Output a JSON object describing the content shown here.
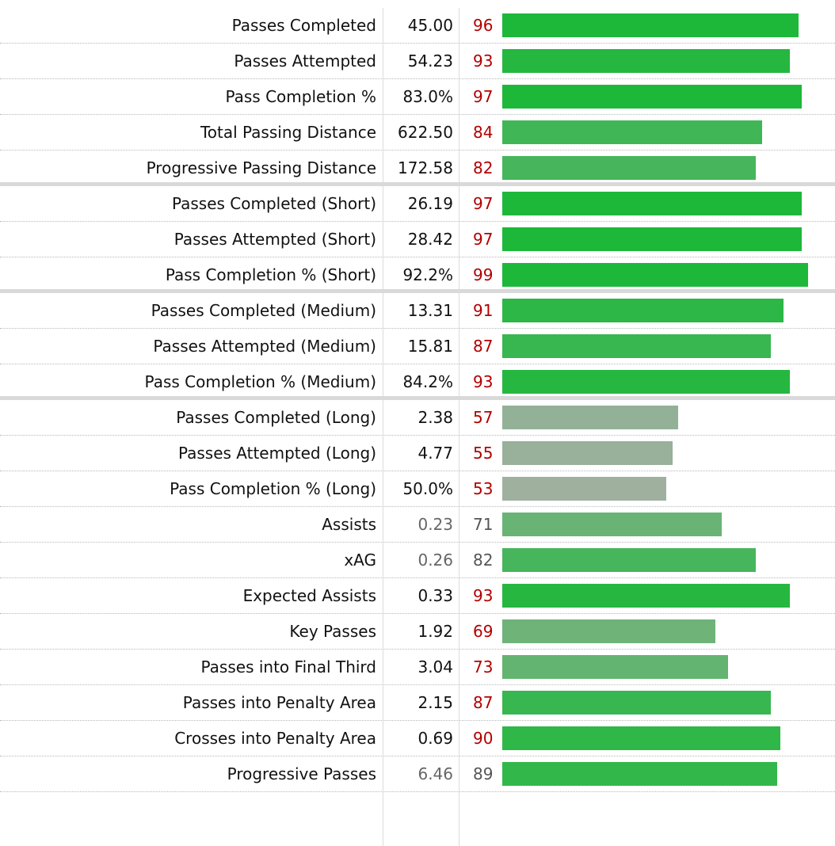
{
  "rows": [
    {
      "label": "Passes Completed",
      "value": "45.00",
      "percentile": "96",
      "percentile_value": 96,
      "highlight": true,
      "group_end": false
    },
    {
      "label": "Passes Attempted",
      "value": "54.23",
      "percentile": "93",
      "percentile_value": 93,
      "highlight": true,
      "group_end": false
    },
    {
      "label": "Pass Completion %",
      "value": "83.0%",
      "percentile": "97",
      "percentile_value": 97,
      "highlight": true,
      "group_end": false
    },
    {
      "label": "Total Passing Distance",
      "value": "622.50",
      "percentile": "84",
      "percentile_value": 84,
      "highlight": true,
      "group_end": false
    },
    {
      "label": "Progressive Passing Distance",
      "value": "172.58",
      "percentile": "82",
      "percentile_value": 82,
      "highlight": true,
      "group_end": true
    },
    {
      "label": "Passes Completed (Short)",
      "value": "26.19",
      "percentile": "97",
      "percentile_value": 97,
      "highlight": true,
      "group_end": false
    },
    {
      "label": "Passes Attempted (Short)",
      "value": "28.42",
      "percentile": "97",
      "percentile_value": 97,
      "highlight": true,
      "group_end": false
    },
    {
      "label": "Pass Completion % (Short)",
      "value": "92.2%",
      "percentile": "99",
      "percentile_value": 99,
      "highlight": true,
      "group_end": true
    },
    {
      "label": "Passes Completed (Medium)",
      "value": "13.31",
      "percentile": "91",
      "percentile_value": 91,
      "highlight": true,
      "group_end": false
    },
    {
      "label": "Passes Attempted (Medium)",
      "value": "15.81",
      "percentile": "87",
      "percentile_value": 87,
      "highlight": true,
      "group_end": false
    },
    {
      "label": "Pass Completion % (Medium)",
      "value": "84.2%",
      "percentile": "93",
      "percentile_value": 93,
      "highlight": true,
      "group_end": true
    },
    {
      "label": "Passes Completed (Long)",
      "value": "2.38",
      "percentile": "57",
      "percentile_value": 57,
      "highlight": true,
      "group_end": false
    },
    {
      "label": "Passes Attempted (Long)",
      "value": "4.77",
      "percentile": "55",
      "percentile_value": 55,
      "highlight": true,
      "group_end": false
    },
    {
      "label": "Pass Completion % (Long)",
      "value": "50.0%",
      "percentile": "53",
      "percentile_value": 53,
      "highlight": true,
      "group_end": false
    },
    {
      "label": "Assists",
      "value": "0.23",
      "percentile": "71",
      "percentile_value": 71,
      "highlight": false,
      "group_end": false
    },
    {
      "label": "xAG",
      "value": "0.26",
      "percentile": "82",
      "percentile_value": 82,
      "highlight": false,
      "group_end": false
    },
    {
      "label": "Expected Assists",
      "value": "0.33",
      "percentile": "93",
      "percentile_value": 93,
      "highlight": true,
      "group_end": false
    },
    {
      "label": "Key Passes",
      "value": "1.92",
      "percentile": "69",
      "percentile_value": 69,
      "highlight": true,
      "group_end": false
    },
    {
      "label": "Passes into Final Third",
      "value": "3.04",
      "percentile": "73",
      "percentile_value": 73,
      "highlight": true,
      "group_end": false
    },
    {
      "label": "Passes into Penalty Area",
      "value": "2.15",
      "percentile": "87",
      "percentile_value": 87,
      "highlight": true,
      "group_end": false
    },
    {
      "label": "Crosses into Penalty Area",
      "value": "0.69",
      "percentile": "90",
      "percentile_value": 90,
      "highlight": true,
      "group_end": false
    },
    {
      "label": "Progressive Passes",
      "value": "6.46",
      "percentile": "89",
      "percentile_value": 89,
      "highlight": false,
      "group_end": false
    }
  ],
  "colors": {
    "bar_high": "#1db83a",
    "bar_low": "#9fb09f",
    "percentile_highlight": "#b30000",
    "percentile_muted": "#555555"
  }
}
